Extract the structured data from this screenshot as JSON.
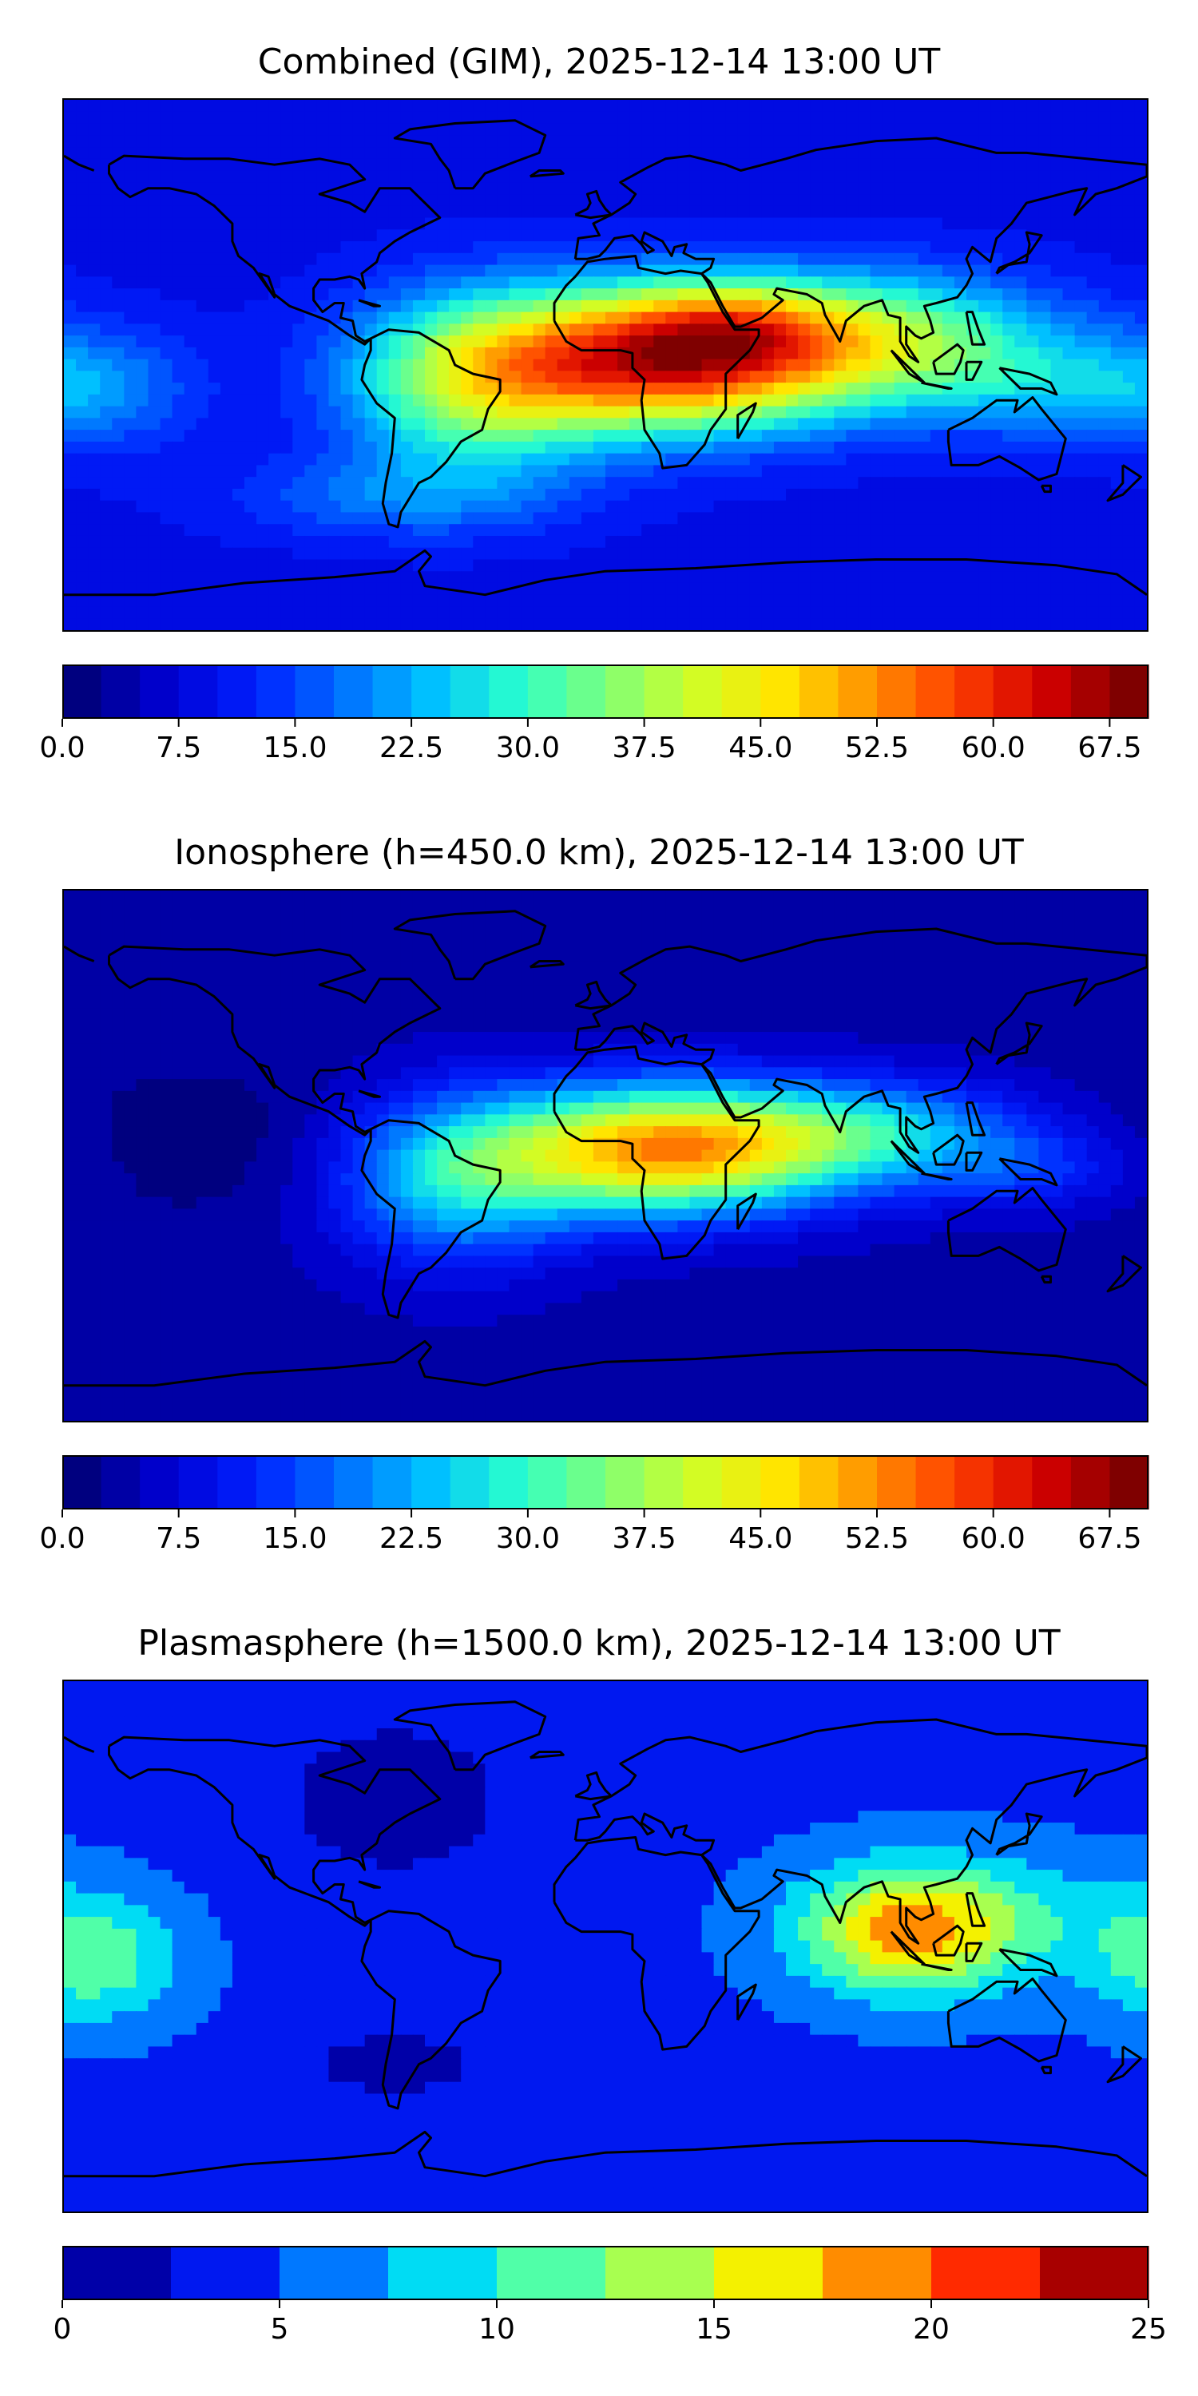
{
  "chart_data": [
    {
      "type": "heatmap",
      "title": "Combined (GIM), 2025-12-14 13:00 UT",
      "colorbar": {
        "min": 0,
        "max": 70,
        "step": 2.5,
        "ticks": [
          0,
          7.5,
          15,
          22.5,
          30,
          37.5,
          45,
          52.5,
          60,
          67.5
        ],
        "tick_labels": [
          "0.0",
          "7.5",
          "15.0",
          "22.5",
          "30.0",
          "37.5",
          "45.0",
          "52.5",
          "60.0",
          "67.5"
        ]
      },
      "field": {
        "base": 9,
        "features": [
          {
            "lon": 20,
            "lat": 2,
            "amp": 52,
            "slon": 45,
            "slat": 17
          },
          {
            "lon": -45,
            "lat": -8,
            "amp": 22,
            "slon": 30,
            "slat": 22
          },
          {
            "lon": 40,
            "lat": 15,
            "amp": 10,
            "slon": 22,
            "slat": 10
          },
          {
            "lon": 95,
            "lat": 10,
            "amp": 22,
            "slon": 40,
            "slat": 15
          },
          {
            "lon": 145,
            "lat": -8,
            "amp": 10,
            "slon": 30,
            "slat": 12
          },
          {
            "lon": -170,
            "lat": -8,
            "amp": 10,
            "slon": 25,
            "slat": 15
          },
          {
            "lon": -70,
            "lat": -45,
            "amp": 8,
            "slon": 40,
            "slat": 10
          }
        ]
      }
    },
    {
      "type": "heatmap",
      "title": "Ionosphere  (h=450.0 km), 2025-12-14 13:00 UT",
      "colorbar": {
        "min": 0,
        "max": 70,
        "step": 2.5,
        "ticks": [
          0,
          7.5,
          15,
          22.5,
          30,
          37.5,
          45,
          52.5,
          60,
          67.5
        ],
        "tick_labels": [
          "0.0",
          "7.5",
          "15.0",
          "22.5",
          "30.0",
          "37.5",
          "45.0",
          "52.5",
          "60.0",
          "67.5"
        ]
      },
      "field": {
        "base": 4,
        "features": [
          {
            "lon": 20,
            "lat": 2,
            "amp": 47,
            "slon": 40,
            "slat": 15
          },
          {
            "lon": -50,
            "lat": -8,
            "amp": 20,
            "slon": 28,
            "slat": 20
          },
          {
            "lon": 90,
            "lat": 8,
            "amp": 18,
            "slon": 35,
            "slat": 12
          },
          {
            "lon": 140,
            "lat": -5,
            "amp": 8,
            "slon": 25,
            "slat": 10
          },
          {
            "lon": -130,
            "lat": 5,
            "amp": -3,
            "slon": 40,
            "slat": 20
          }
        ]
      }
    },
    {
      "type": "heatmap",
      "title": "Plasmasphere (h=1500.0 km), 2025-12-14 13:00 UT",
      "colorbar": {
        "min": 0,
        "max": 25,
        "step": 2.5,
        "ticks": [
          0,
          5,
          10,
          15,
          20,
          25
        ],
        "tick_labels": [
          "0",
          "5",
          "10",
          "15",
          "20",
          "25"
        ]
      },
      "field": {
        "base": 4.5,
        "features": [
          {
            "lon": 100,
            "lat": 5,
            "amp": 12,
            "slon": 25,
            "slat": 15
          },
          {
            "lon": 130,
            "lat": 10,
            "amp": 4,
            "slon": 40,
            "slat": 15
          },
          {
            "lon": -170,
            "lat": -5,
            "amp": 7,
            "slon": 20,
            "slat": 15
          },
          {
            "lon": -70,
            "lat": 50,
            "amp": -3,
            "slon": 35,
            "slat": 25
          },
          {
            "lon": -70,
            "lat": -40,
            "amp": -3,
            "slon": 25,
            "slat": 10
          }
        ]
      }
    }
  ],
  "colormap": [
    "#00007f",
    "#0000d4",
    "#0020ff",
    "#0070ff",
    "#00c0ff",
    "#29ffce",
    "#7dff7a",
    "#ceff29",
    "#ffe500",
    "#ff9400",
    "#ff4100",
    "#d40000",
    "#7f0000"
  ],
  "colormap_coarse": [
    "#0000a8",
    "#0018f0",
    "#0078ff",
    "#00dcf4",
    "#50ffa8",
    "#a8ff50",
    "#f4f100",
    "#ff8c00",
    "#ff2a00",
    "#a80000"
  ]
}
